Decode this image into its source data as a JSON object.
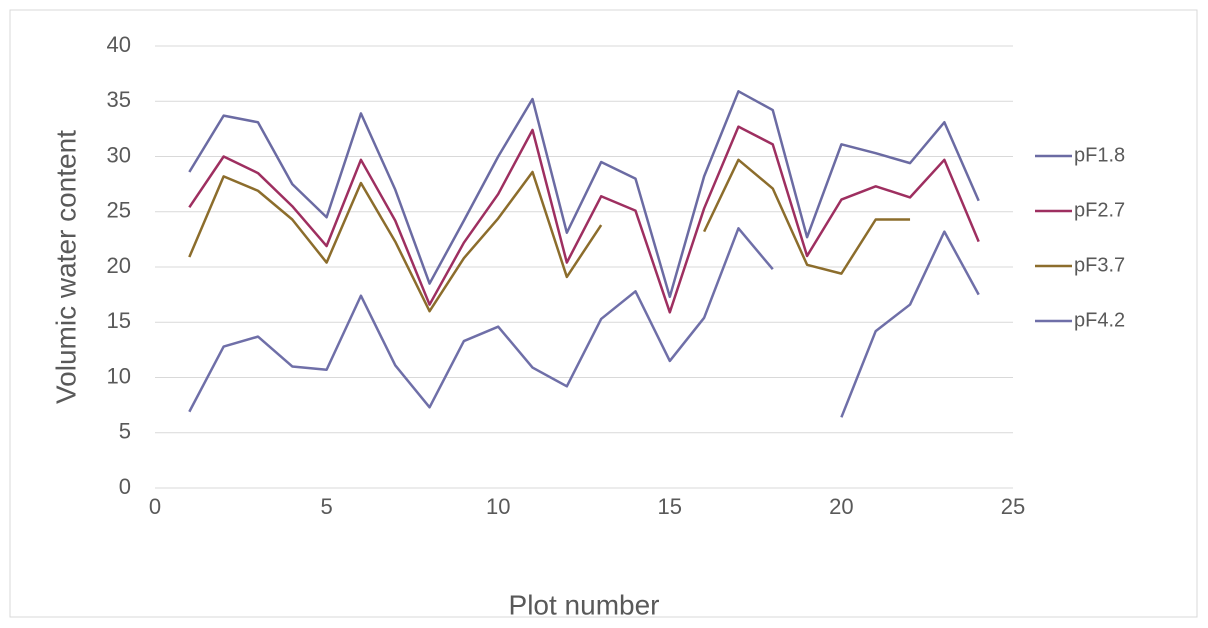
{
  "chart_data": {
    "type": "line",
    "x_label": "Plot number",
    "y_label": "Volumic water content",
    "x": [
      1,
      2,
      3,
      4,
      5,
      6,
      7,
      8,
      9,
      10,
      11,
      12,
      13,
      14,
      15,
      16,
      17,
      18,
      19,
      20,
      21,
      22,
      23,
      24
    ],
    "series": [
      {
        "name": "pF1.8",
        "color": "#6B6BA3",
        "values": [
          28.6,
          33.7,
          33.1,
          27.5,
          24.5,
          33.9,
          27.0,
          18.5,
          24.2,
          30.0,
          35.2,
          23.1,
          29.5,
          28.0,
          17.3,
          28.2,
          35.9,
          34.2,
          22.7,
          31.1,
          30.3,
          29.4,
          33.1,
          26.0
        ]
      },
      {
        "name": "pF2.7",
        "color": "#9E2F60",
        "values": [
          25.4,
          30.0,
          28.5,
          25.5,
          21.9,
          29.7,
          24.2,
          16.6,
          22.2,
          26.6,
          32.4,
          20.4,
          26.4,
          25.1,
          15.9,
          25.3,
          32.7,
          31.1,
          21.0,
          26.1,
          27.3,
          26.3,
          29.7,
          22.3
        ]
      },
      {
        "name": "pF3.7",
        "color": "#8C6D2C",
        "values": [
          20.9,
          28.2,
          26.9,
          24.3,
          20.4,
          27.6,
          22.3,
          16.0,
          20.8,
          24.4,
          28.6,
          19.1,
          23.8,
          null,
          null,
          23.2,
          29.7,
          27.1,
          20.2,
          19.4,
          24.3,
          24.3,
          null,
          null
        ]
      },
      {
        "name": "pF4.2",
        "color": "#6F6FA8",
        "values": [
          6.9,
          12.8,
          13.7,
          11.0,
          10.7,
          17.4,
          11.1,
          7.3,
          13.3,
          14.6,
          10.9,
          9.2,
          15.3,
          17.8,
          11.5,
          15.4,
          23.5,
          19.8,
          null,
          6.4,
          14.2,
          16.6,
          23.2,
          17.5
        ]
      }
    ],
    "xlim": [
      0,
      25
    ],
    "xticks": [
      0,
      5,
      10,
      15,
      20,
      25
    ],
    "ylim": [
      0,
      40
    ],
    "yticks": [
      0,
      5,
      10,
      15,
      20,
      25,
      30,
      35,
      40
    ],
    "grid": true,
    "legend": "right"
  }
}
